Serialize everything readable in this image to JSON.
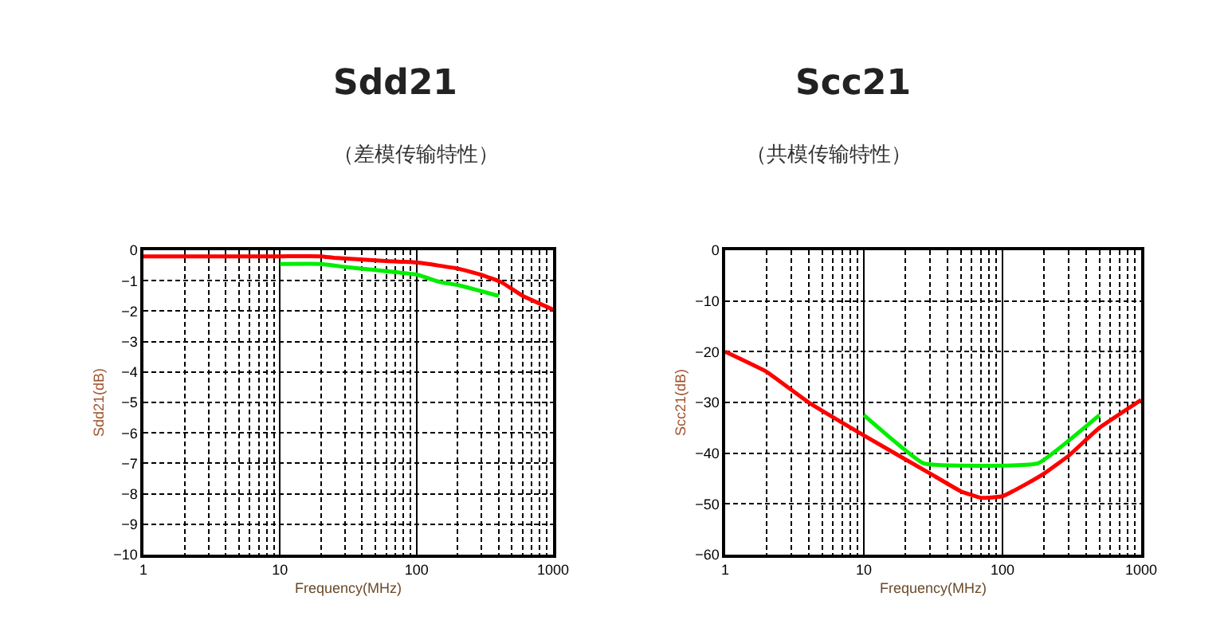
{
  "chart_data": [
    {
      "type": "line",
      "title": "Sdd21",
      "subtitle": "（差模传输特性）",
      "xlabel": "Frequency(MHz)",
      "ylabel": "Sdd21(dB)",
      "log": "x",
      "grid": true,
      "marker": "none",
      "line_style": "solid",
      "xlim": [
        1,
        1000
      ],
      "xticks": [
        1,
        10,
        100,
        1000
      ],
      "ylim": [
        -10,
        0
      ],
      "yticks": [
        -10,
        -9,
        -8,
        -7,
        -6,
        -5,
        -4,
        -3,
        -2,
        -1,
        0
      ],
      "series": [
        {
          "color": "#ff0000",
          "x": [
            1,
            10,
            20,
            25,
            59,
            100,
            144,
            200,
            295,
            418,
            600,
            1000
          ],
          "values": [
            -0.2,
            -0.2,
            -0.2,
            -0.25,
            -0.35,
            -0.4,
            -0.5,
            -0.6,
            -0.8,
            -1.05,
            -1.5,
            -1.95
          ]
        },
        {
          "color": "#00ee00",
          "x": [
            10,
            20,
            30,
            50,
            100,
            150,
            205,
            400
          ],
          "values": [
            -0.45,
            -0.45,
            -0.55,
            -0.65,
            -0.8,
            -1.05,
            -1.15,
            -1.5
          ]
        }
      ]
    },
    {
      "type": "line",
      "title": "Scc21",
      "subtitle": "（共模传输特性）",
      "xlabel": "Frequency(MHz)",
      "ylabel": "Scc21(dB)",
      "log": "x",
      "grid": true,
      "marker": "none",
      "line_style": "solid",
      "xlim": [
        1,
        1000
      ],
      "xticks": [
        1,
        10,
        100,
        1000
      ],
      "ylim": [
        -60,
        0
      ],
      "yticks": [
        -60,
        -50,
        -40,
        -30,
        -20,
        -10,
        0
      ],
      "series": [
        {
          "color": "#ff0000",
          "x": [
            1,
            2,
            4,
            10,
            30,
            50,
            70,
            100,
            150,
            200,
            300,
            500,
            1000
          ],
          "values": [
            -20,
            -24,
            -30,
            -36.5,
            -44,
            -47.5,
            -48.8,
            -48.5,
            -46,
            -44,
            -40.5,
            -35,
            -29.5
          ]
        },
        {
          "color": "#00ee00",
          "x": [
            10,
            27,
            180,
            500
          ],
          "values": [
            -32.5,
            -42,
            -42,
            -32.5
          ]
        }
      ]
    }
  ]
}
